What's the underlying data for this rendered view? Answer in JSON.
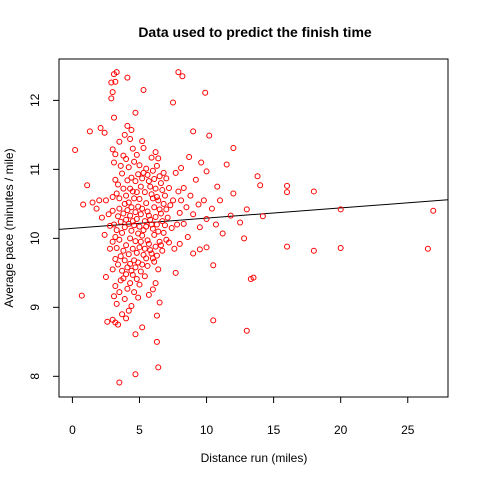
{
  "chart_data": {
    "type": "scatter",
    "title": "Data used to predict the finish time",
    "xlabel": "Distance run (miles)",
    "ylabel": "Average pace (minutes / mile)",
    "xlim": [
      -1,
      28
    ],
    "ylim": [
      7.7,
      12.6
    ],
    "xticks": [
      0,
      5,
      10,
      15,
      20,
      25
    ],
    "yticks": [
      8,
      9,
      10,
      11,
      12
    ],
    "grid": false,
    "point_color": "#ff0000",
    "line_color": "#000000",
    "regression_line": {
      "x": [
        -1,
        28
      ],
      "y": [
        10.13,
        10.56
      ]
    },
    "points": [
      [
        0.2,
        11.28
      ],
      [
        0.7,
        9.17
      ],
      [
        0.8,
        10.49
      ],
      [
        1.1,
        10.77
      ],
      [
        1.3,
        11.55
      ],
      [
        1.5,
        10.52
      ],
      [
        1.8,
        10.43
      ],
      [
        2,
        10.55
      ],
      [
        2.1,
        11.6
      ],
      [
        2.2,
        10.3
      ],
      [
        2.4,
        11.53
      ],
      [
        2.4,
        10.05
      ],
      [
        2.5,
        9.44
      ],
      [
        2.5,
        10.55
      ],
      [
        2.6,
        8.79
      ],
      [
        2.7,
        10.35
      ],
      [
        2.8,
        10.18
      ],
      [
        2.8,
        9.85
      ],
      [
        2.9,
        12.26
      ],
      [
        2.9,
        12.03
      ],
      [
        3,
        12.12
      ],
      [
        3,
        11.29
      ],
      [
        3,
        10.6
      ],
      [
        3,
        10.4
      ],
      [
        3,
        9.95
      ],
      [
        3,
        9.55
      ],
      [
        3,
        8.82
      ],
      [
        3.1,
        12.38
      ],
      [
        3.1,
        11.75
      ],
      [
        3.1,
        11.1
      ],
      [
        3.1,
        10.2
      ],
      [
        3.1,
        9.16
      ],
      [
        3.2,
        12.27
      ],
      [
        3.2,
        11.22
      ],
      [
        3.2,
        10.85
      ],
      [
        3.2,
        10.02
      ],
      [
        3.2,
        9.7
      ],
      [
        3.2,
        9.31
      ],
      [
        3.2,
        8.78
      ],
      [
        3.3,
        12.41
      ],
      [
        3.3,
        10.65
      ],
      [
        3.3,
        10.12
      ],
      [
        3.3,
        9.86
      ],
      [
        3.3,
        9.05
      ],
      [
        3.4,
        10.78
      ],
      [
        3.4,
        10.32
      ],
      [
        3.4,
        9.62
      ],
      [
        3.4,
        8.75
      ],
      [
        3.5,
        11.4
      ],
      [
        3.5,
        10.58
      ],
      [
        3.5,
        10.43
      ],
      [
        3.5,
        9.98
      ],
      [
        3.5,
        9.22
      ],
      [
        3.5,
        7.91
      ],
      [
        3.6,
        11.05
      ],
      [
        3.6,
        10.24
      ],
      [
        3.6,
        9.74
      ],
      [
        3.6,
        9.39
      ],
      [
        3.7,
        10.94
      ],
      [
        3.7,
        10.08
      ],
      [
        3.7,
        9.53
      ],
      [
        3.7,
        8.9
      ],
      [
        3.8,
        11.2
      ],
      [
        3.8,
        10.72
      ],
      [
        3.8,
        10.36
      ],
      [
        3.8,
        9.82
      ],
      [
        3.8,
        9.42
      ],
      [
        3.9,
        11.5
      ],
      [
        3.9,
        10.5
      ],
      [
        3.9,
        10.16
      ],
      [
        3.9,
        9.68
      ],
      [
        3.9,
        9.12
      ],
      [
        4,
        11.15
      ],
      [
        4,
        10.62
      ],
      [
        4,
        10.27
      ],
      [
        4,
        9.9
      ],
      [
        4,
        9.48
      ],
      [
        4,
        8.84
      ],
      [
        4.1,
        12.33
      ],
      [
        4.1,
        11.63
      ],
      [
        4.1,
        10.84
      ],
      [
        4.1,
        10.41
      ],
      [
        4.1,
        9.58
      ],
      [
        4.1,
        9.27
      ],
      [
        4.2,
        11.03
      ],
      [
        4.2,
        10.52
      ],
      [
        4.2,
        10.21
      ],
      [
        4.2,
        9.77
      ],
      [
        4.2,
        8.95
      ],
      [
        4.3,
        11.44
      ],
      [
        4.3,
        10.72
      ],
      [
        4.3,
        10.33
      ],
      [
        4.3,
        10
      ],
      [
        4.3,
        9.63
      ],
      [
        4.3,
        9.35
      ],
      [
        4.4,
        11.57
      ],
      [
        4.4,
        10.88
      ],
      [
        4.4,
        10.45
      ],
      [
        4.4,
        10.11
      ],
      [
        4.4,
        9.53
      ],
      [
        4.4,
        9.02
      ],
      [
        4.5,
        11.3
      ],
      [
        4.5,
        10.68
      ],
      [
        4.5,
        10.25
      ],
      [
        4.5,
        9.85
      ],
      [
        4.5,
        9.47
      ],
      [
        4.6,
        11.11
      ],
      [
        4.6,
        10.58
      ],
      [
        4.6,
        10.19
      ],
      [
        4.6,
        9.68
      ],
      [
        4.6,
        9.22
      ],
      [
        4.7,
        11.82
      ],
      [
        4.7,
        10.83
      ],
      [
        4.7,
        10.38
      ],
      [
        4.7,
        9.96
      ],
      [
        4.7,
        9.58
      ],
      [
        4.7,
        8.61
      ],
      [
        4.7,
        8.03
      ],
      [
        4.8,
        11.21
      ],
      [
        4.8,
        10.67
      ],
      [
        4.8,
        10.28
      ],
      [
        4.8,
        9.79
      ],
      [
        4.8,
        9.41
      ],
      [
        4.9,
        10.93
      ],
      [
        4.9,
        10.46
      ],
      [
        4.9,
        10.07
      ],
      [
        4.9,
        9.65
      ],
      [
        4.9,
        9.14
      ],
      [
        5,
        11.06
      ],
      [
        5,
        10.57
      ],
      [
        5,
        10.17
      ],
      [
        5,
        9.87
      ],
      [
        5,
        9.33
      ],
      [
        5.1,
        10.75
      ],
      [
        5.1,
        10.35
      ],
      [
        5.1,
        9.95
      ],
      [
        5.1,
        9.52
      ],
      [
        5.2,
        11.41
      ],
      [
        5.2,
        10.87
      ],
      [
        5.2,
        10.43
      ],
      [
        5.2,
        10.04
      ],
      [
        5.2,
        9.62
      ],
      [
        5.2,
        8.71
      ],
      [
        5.3,
        12.15
      ],
      [
        5.3,
        11.31
      ],
      [
        5.3,
        10.95
      ],
      [
        5.3,
        10.12
      ],
      [
        5.3,
        9.76
      ],
      [
        5.4,
        10.67
      ],
      [
        5.4,
        10.25
      ],
      [
        5.4,
        9.85
      ],
      [
        5.4,
        9.45
      ],
      [
        5.5,
        11.01
      ],
      [
        5.5,
        10.51
      ],
      [
        5.5,
        10.17
      ],
      [
        5.5,
        9.71
      ],
      [
        5.6,
        10.92
      ],
      [
        5.6,
        10.39
      ],
      [
        5.6,
        9.97
      ],
      [
        5.6,
        9.6
      ],
      [
        5.7,
        10.83
      ],
      [
        5.7,
        10.33
      ],
      [
        5.7,
        9.92
      ],
      [
        5.7,
        9.18
      ],
      [
        5.8,
        10.75
      ],
      [
        5.8,
        10.27
      ],
      [
        5.8,
        9.83
      ],
      [
        5.9,
        11.17
      ],
      [
        5.9,
        10.64
      ],
      [
        5.9,
        10.2
      ],
      [
        5.9,
        9.78
      ],
      [
        6,
        10.98
      ],
      [
        6,
        10.58
      ],
      [
        6,
        10.14
      ],
      [
        6,
        9.71
      ],
      [
        6,
        9.26
      ],
      [
        6.1,
        10.86
      ],
      [
        6.1,
        10.45
      ],
      [
        6.1,
        10.05
      ],
      [
        6.1,
        9.66
      ],
      [
        6.2,
        11.25
      ],
      [
        6.2,
        10.72
      ],
      [
        6.2,
        10.31
      ],
      [
        6.2,
        9.88
      ],
      [
        6.2,
        9.35
      ],
      [
        6.3,
        11.05
      ],
      [
        6.3,
        10.6
      ],
      [
        6.3,
        10.2
      ],
      [
        6.3,
        9.75
      ],
      [
        6.3,
        8.88
      ],
      [
        6.3,
        8.5
      ],
      [
        6.4,
        11.16
      ],
      [
        6.4,
        10.55
      ],
      [
        6.4,
        10.1
      ],
      [
        6.4,
        9.55
      ],
      [
        6.4,
        8.13
      ],
      [
        6.5,
        10.9
      ],
      [
        6.5,
        10.42
      ],
      [
        6.5,
        9.95
      ],
      [
        6.5,
        9.07
      ],
      [
        6.6,
        10.8
      ],
      [
        6.6,
        10.36
      ],
      [
        6.6,
        9.9
      ],
      [
        6.7,
        10.7
      ],
      [
        6.7,
        10.25
      ],
      [
        6.7,
        9.82
      ],
      [
        6.8,
        10.95
      ],
      [
        6.8,
        10.5
      ],
      [
        6.8,
        10.08
      ],
      [
        6.9,
        10.62
      ],
      [
        6.9,
        10.19
      ],
      [
        7,
        10.87
      ],
      [
        7,
        10.42
      ],
      [
        7,
        9.98
      ],
      [
        7.1,
        10.3
      ],
      [
        7.2,
        10.73
      ],
      [
        7.2,
        9.94
      ],
      [
        7.3,
        10.48
      ],
      [
        7.4,
        10.15
      ],
      [
        7.5,
        11.97
      ],
      [
        7.5,
        10.55
      ],
      [
        7.6,
        9.85
      ],
      [
        7.7,
        10.95
      ],
      [
        7.7,
        9.5
      ],
      [
        7.8,
        10.2
      ],
      [
        7.9,
        12.41
      ],
      [
        7.9,
        10.68
      ],
      [
        8,
        10.37
      ],
      [
        8,
        9.92
      ],
      [
        8.1,
        11.02
      ],
      [
        8.1,
        10.55
      ],
      [
        8.2,
        12.35
      ],
      [
        8.3,
        10.73
      ],
      [
        8.3,
        10.21
      ],
      [
        8.5,
        10.45
      ],
      [
        8.6,
        10.02
      ],
      [
        8.7,
        11.18
      ],
      [
        8.8,
        10.62
      ],
      [
        9,
        11.55
      ],
      [
        9,
        10.35
      ],
      [
        9,
        9.78
      ],
      [
        9.2,
        10.85
      ],
      [
        9.4,
        10.49
      ],
      [
        9.5,
        10.16
      ],
      [
        9.5,
        9.84
      ],
      [
        9.6,
        11.1
      ],
      [
        9.8,
        10.55
      ],
      [
        9.9,
        12.11
      ],
      [
        10,
        10.97
      ],
      [
        10,
        10.28
      ],
      [
        10,
        9.87
      ],
      [
        10.2,
        11.49
      ],
      [
        10.4,
        10.43
      ],
      [
        10.5,
        9.61
      ],
      [
        10.5,
        8.81
      ],
      [
        10.7,
        10.2
      ],
      [
        10.8,
        10.75
      ],
      [
        11,
        10.55
      ],
      [
        11.2,
        10.07
      ],
      [
        11.5,
        11.07
      ],
      [
        11.8,
        10.33
      ],
      [
        12,
        11.31
      ],
      [
        12,
        10.65
      ],
      [
        12.5,
        10.23
      ],
      [
        12.8,
        10
      ],
      [
        13,
        8.66
      ],
      [
        13,
        10.42
      ],
      [
        13.3,
        9.41
      ],
      [
        13.5,
        9.43
      ],
      [
        13.8,
        10.9
      ],
      [
        14,
        10.77
      ],
      [
        14.2,
        10.32
      ],
      [
        16,
        10.76
      ],
      [
        16,
        10.67
      ],
      [
        16,
        9.88
      ],
      [
        18,
        10.68
      ],
      [
        18,
        9.82
      ],
      [
        20,
        10.42
      ],
      [
        20,
        9.86
      ],
      [
        26.5,
        9.85
      ],
      [
        26.9,
        10.4
      ]
    ]
  }
}
